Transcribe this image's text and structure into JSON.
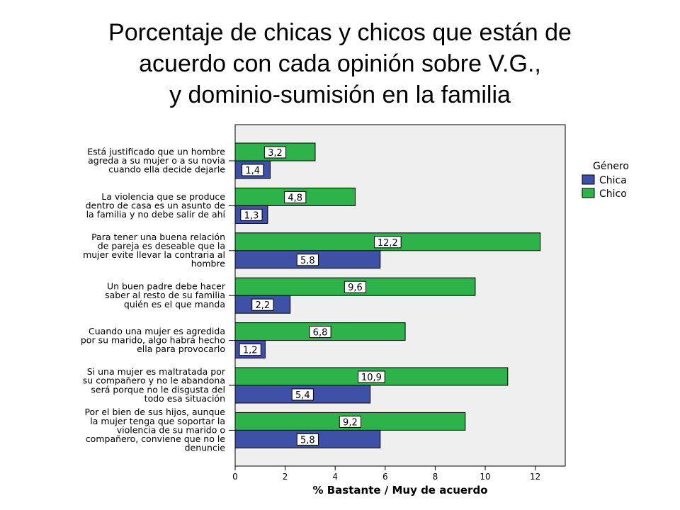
{
  "title_lines": [
    "Porcentaje de chicas y chicos que están de",
    "acuerdo con cada opinión sobre V.G.,",
    "y dominio-sumisión en la familia"
  ],
  "chart_data": {
    "type": "bar",
    "orientation": "horizontal",
    "title": "Porcentaje de chicas y chicos que están de acuerdo con cada opinión sobre V.G., y dominio-sumisión en la familia",
    "xlabel": "% Bastante / Muy de acuerdo",
    "ylabel": "",
    "xlim": [
      0,
      13.2
    ],
    "xticks": [
      0,
      2,
      4,
      6,
      8,
      10,
      12
    ],
    "grid": false,
    "legend": {
      "title": "Género",
      "position": "right"
    },
    "categories": [
      [
        "Está justificado que un hombre",
        "agreda a su mujer o a su novia",
        "cuando ella decide dejarle"
      ],
      [
        "La violencia que se produce",
        "dentro de casa es un asunto de",
        "la familia y no debe salir de ahí"
      ],
      [
        "Para tener una buena relación",
        "de pareja es deseable que la",
        "mujer evite llevar la contraria al",
        "hombre"
      ],
      [
        "Un buen padre debe hacer",
        "saber al resto de su familia",
        "quién es el que manda"
      ],
      [
        "Cuando una mujer es agredida",
        "por su marido, algo habrá hecho",
        "ella para provocarlo"
      ],
      [
        "Si una mujer es maltratada por",
        "su compañero y no le abandona",
        "será porque no le disgusta del",
        "todo esa situación"
      ],
      [
        "Por el bien de sus hijos, aunque",
        "la mujer tenga que soportar la",
        "violencia de su marido o",
        "compañero, conviene que no le",
        "denuncie"
      ]
    ],
    "series": [
      {
        "name": "Chica",
        "color": "#3f51a6",
        "values": [
          1.4,
          1.3,
          5.8,
          2.2,
          1.2,
          5.4,
          5.8
        ],
        "labels": [
          "1,4",
          "1,3",
          "5,8",
          "2,2",
          "1,2",
          "5,4",
          "5,8"
        ]
      },
      {
        "name": "Chico",
        "color": "#2db34a",
        "values": [
          3.2,
          4.8,
          12.2,
          9.6,
          6.8,
          10.9,
          9.2
        ],
        "labels": [
          "3,2",
          "4,8",
          "12,2",
          "9,6",
          "6,8",
          "10,9",
          "9,2"
        ]
      }
    ]
  }
}
